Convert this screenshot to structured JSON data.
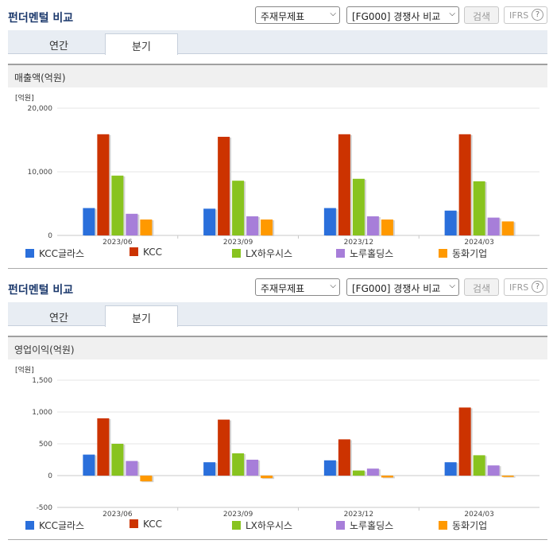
{
  "colors": {
    "KCC글라스": "#2a6fdb",
    "KCC": "#cc3300",
    "LX하우시스": "#88c31f",
    "노루홀딩스": "#a77ed9",
    "동화기업": "#ff9900"
  },
  "panels": [
    {
      "title": "펀더멘털 비교",
      "statement_select": "주재무제표",
      "compare_select": "[FG000] 경쟁사 비교",
      "search_label": "검색",
      "ifrs_label": "IFRS",
      "help_label": "?",
      "tabs": {
        "annual": "연간",
        "quarter": "분기"
      },
      "metric_label": "매출액(억원)",
      "chart_data": {
        "type": "bar",
        "title": "매출액(억원)",
        "ylabel": "[억원]",
        "categories": [
          "2023/06",
          "2023/09",
          "2023/12",
          "2024/03"
        ],
        "ylim": [
          0,
          20000
        ],
        "yticks": [
          0,
          10000,
          20000
        ],
        "ytick_labels": [
          "0",
          "10,000",
          "20,000"
        ],
        "series": [
          {
            "name": "KCC글라스",
            "values": [
              4300,
              4200,
              4300,
              3900
            ]
          },
          {
            "name": "KCC",
            "values": [
              15900,
              15500,
              15900,
              15900
            ]
          },
          {
            "name": "LX하우시스",
            "values": [
              9400,
              8600,
              8900,
              8500
            ]
          },
          {
            "name": "노루홀딩스",
            "values": [
              3400,
              3000,
              3000,
              2800
            ]
          },
          {
            "name": "동화기업",
            "values": [
              2500,
              2500,
              2500,
              2200
            ]
          }
        ]
      }
    },
    {
      "title": "펀더멘털 비교",
      "statement_select": "주재무제표",
      "compare_select": "[FG000] 경쟁사 비교",
      "search_label": "검색",
      "ifrs_label": "IFRS",
      "help_label": "?",
      "tabs": {
        "annual": "연간",
        "quarter": "분기"
      },
      "metric_label": "영업이익(억원)",
      "chart_data": {
        "type": "bar",
        "title": "영업이익(억원)",
        "ylabel": "[억원]",
        "categories": [
          "2023/06",
          "2023/09",
          "2023/12",
          "2024/03"
        ],
        "ylim": [
          -500,
          1500
        ],
        "yticks": [
          -500,
          0,
          500,
          1000,
          1500
        ],
        "ytick_labels": [
          "-500",
          "0",
          "500",
          "1,000",
          "1,500"
        ],
        "series": [
          {
            "name": "KCC글라스",
            "values": [
              330,
              210,
              240,
              210
            ]
          },
          {
            "name": "KCC",
            "values": [
              900,
              880,
              570,
              1070
            ]
          },
          {
            "name": "LX하우시스",
            "values": [
              500,
              350,
              80,
              320
            ]
          },
          {
            "name": "노루홀딩스",
            "values": [
              230,
              250,
              110,
              160
            ]
          },
          {
            "name": "동화기업",
            "values": [
              -90,
              -40,
              -30,
              -20
            ]
          }
        ]
      }
    }
  ]
}
